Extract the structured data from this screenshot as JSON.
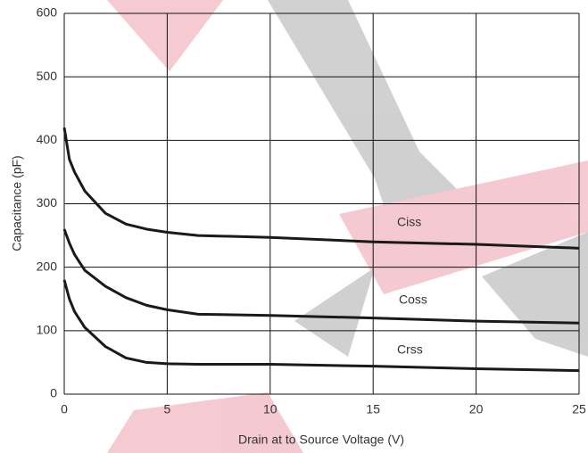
{
  "chart_data": {
    "type": "line",
    "x_label": "Drain at to Source Voltage (V)",
    "y_label": "Capacitance (pF)",
    "x": [
      0,
      0.25,
      0.5,
      1,
      2,
      3,
      4,
      5,
      6.5,
      10,
      15,
      20,
      25
    ],
    "series": [
      {
        "name": "Ciss",
        "color": "#1a1a1a",
        "values": [
          420,
          370,
          350,
          320,
          285,
          268,
          260,
          255,
          250,
          247,
          240,
          236,
          230
        ]
      },
      {
        "name": "Coss",
        "color": "#1a1a1a",
        "values": [
          260,
          238,
          220,
          195,
          170,
          152,
          140,
          133,
          126,
          124,
          120,
          115,
          112
        ]
      },
      {
        "name": "Crss",
        "color": "#1a1a1a",
        "values": [
          180,
          150,
          130,
          105,
          75,
          57,
          50,
          48,
          47,
          47,
          44,
          40,
          37
        ]
      }
    ],
    "xlim": [
      0,
      25
    ],
    "xticks": [
      0,
      5,
      10,
      15,
      20,
      25
    ],
    "ylim": [
      0,
      600
    ],
    "yticks": [
      0,
      100,
      200,
      300,
      400,
      500,
      600
    ],
    "grid": true
  }
}
